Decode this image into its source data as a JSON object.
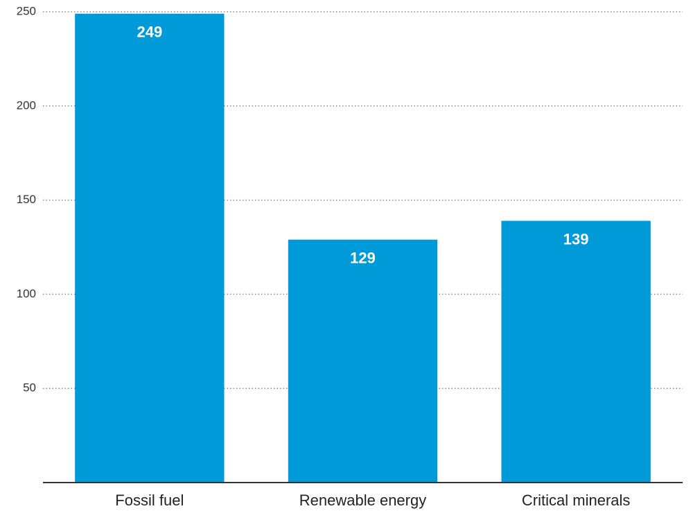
{
  "chart_data": {
    "type": "bar",
    "categories": [
      "Fossil fuel",
      "Renewable energy",
      "Critical minerals"
    ],
    "values": [
      249,
      129,
      139
    ],
    "color": "#009ad9",
    "ylim": [
      0,
      250
    ],
    "yticks": [
      50,
      100,
      150,
      200,
      250
    ],
    "grid": true
  }
}
